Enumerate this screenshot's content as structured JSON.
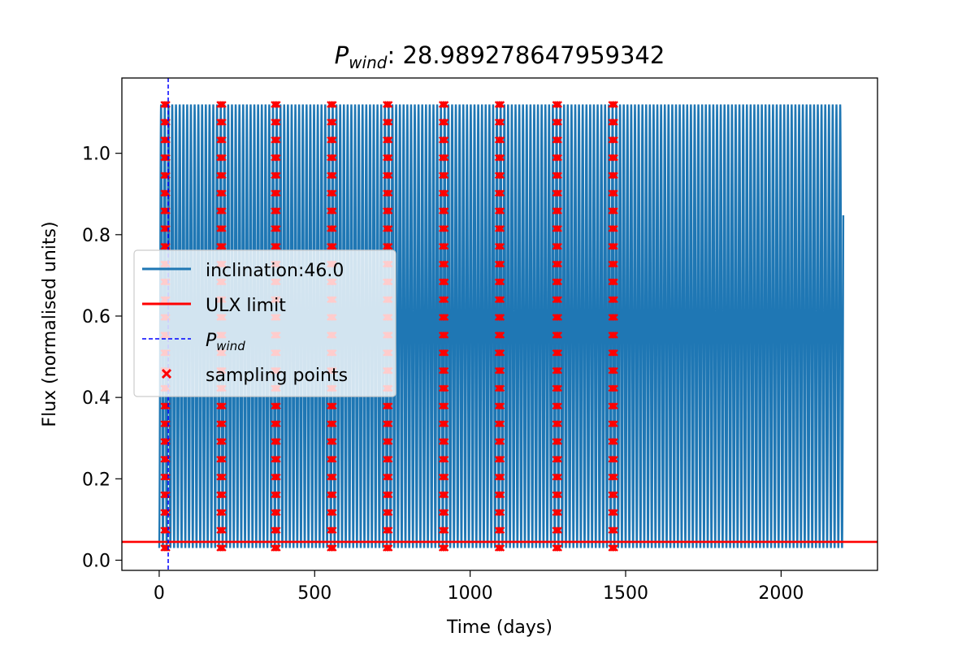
{
  "chart_data": {
    "type": "line",
    "title_main": "P",
    "title_sub": "wind",
    "title_value": ": 28.989278647959342",
    "xlabel": "Time (days)",
    "ylabel": "Flux (normalised units)",
    "xlim": [
      -120,
      2310
    ],
    "ylim": [
      -0.025,
      1.185
    ],
    "x_ticks": [
      0,
      500,
      1000,
      1500,
      2000
    ],
    "x_tick_labels": [
      "0",
      "500",
      "1000",
      "1500",
      "2000"
    ],
    "y_ticks": [
      0.0,
      0.2,
      0.4,
      0.6,
      0.8,
      1.0
    ],
    "y_tick_labels": [
      "0.0",
      "0.2",
      "0.4",
      "0.6",
      "0.8",
      "1.0"
    ],
    "grid": false,
    "legend_position": "center-left",
    "series": [
      {
        "name": "inclination:46.0",
        "kind": "line",
        "color": "#1f77b4",
        "x_start": 0,
        "x_end": 2200,
        "oscillation_period_days": 12,
        "y_min": 0.03,
        "y_max": 1.12
      },
      {
        "name": "ULX limit",
        "kind": "hline",
        "color": "#ff0000",
        "y": 0.045
      },
      {
        "name": "P",
        "name_sub": "wind",
        "kind": "vline",
        "color": "#0000ff",
        "linestyle": "dashed",
        "x": 28.989278647959342
      },
      {
        "name": "sampling points",
        "kind": "scatter",
        "color": "#ff0000",
        "marker": "x",
        "cluster_centers": [
          20,
          200,
          375,
          555,
          735,
          915,
          1095,
          1280,
          1460
        ],
        "y_range": [
          0.03,
          1.12
        ]
      }
    ]
  }
}
